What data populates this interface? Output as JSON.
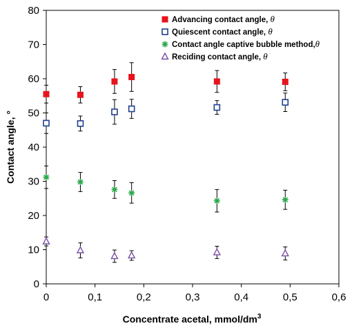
{
  "chart_data": {
    "type": "scatter",
    "title": "",
    "xlabel": "Concentrate acetal, mmol/dm",
    "xlabel_sup": "3",
    "ylabel": "Contact angle, °",
    "xlim": [
      0,
      0.6
    ],
    "ylim": [
      0,
      80
    ],
    "x_ticks": [
      "0",
      "0,1",
      "0,2",
      "0,3",
      "0,4",
      "0,5",
      "0,6"
    ],
    "x_tick_values": [
      0,
      0.1,
      0.2,
      0.3,
      0.4,
      0.5,
      0.6
    ],
    "y_ticks": [
      "0",
      "10",
      "20",
      "30",
      "40",
      "50",
      "60",
      "70",
      "80"
    ],
    "y_tick_values": [
      0,
      10,
      20,
      30,
      40,
      50,
      60,
      70,
      80
    ],
    "grid": false,
    "legend_position": "top-right",
    "x": [
      0,
      0.07,
      0.14,
      0.175,
      0.35,
      0.49
    ],
    "series": [
      {
        "name": "Advancing contact angle, ",
        "name_symbol": "θ",
        "marker": "filled-square",
        "color": "#e8141c",
        "values": [
          55.5,
          55.3,
          59.2,
          60.5,
          59.2,
          59.1
        ],
        "errors": [
          2.6,
          2.4,
          3.5,
          4.2,
          3.2,
          2.6
        ]
      },
      {
        "name": "Quiescent contact angle, ",
        "name_symbol": "θ",
        "marker": "open-square",
        "color": "#1f3f8f",
        "values": [
          47.0,
          46.9,
          50.3,
          51.2,
          51.6,
          53.1
        ],
        "errors": [
          3.0,
          2.2,
          3.6,
          2.8,
          2.0,
          2.7
        ]
      },
      {
        "name": "Contact angle captive bubble method,",
        "name_symbol": "θ",
        "marker": "star",
        "color": "#2aa84a",
        "values": [
          31.2,
          29.8,
          27.6,
          26.6,
          24.3,
          24.6
        ],
        "errors": [
          3.3,
          2.8,
          2.6,
          3.0,
          3.3,
          2.8
        ]
      },
      {
        "name": "Reciding contact angle, ",
        "name_symbol": "θ",
        "marker": "open-triangle",
        "color": "#7b4fa3",
        "values": [
          12.4,
          9.8,
          8.1,
          8.3,
          9.2,
          8.9
        ],
        "errors": [
          1.3,
          2.2,
          1.8,
          1.4,
          1.8,
          1.9
        ]
      }
    ]
  }
}
